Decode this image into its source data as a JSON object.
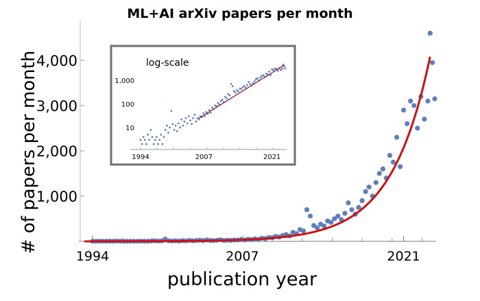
{
  "chart_data": {
    "type": "scatter",
    "title": "ML+AI arXiv papers per month",
    "xlabel": "publication year",
    "ylabel": "# of papers per month",
    "xlim": [
      1993,
      2024.5
    ],
    "ylim": [
      0,
      4800
    ],
    "x_ticks": [
      {
        "value": 1994,
        "label": "1994"
      },
      {
        "value": 2007,
        "label": "2007"
      },
      {
        "value": 2021,
        "label": "2021"
      }
    ],
    "y_ticks": [
      {
        "value": 1000,
        "label": "1,000"
      },
      {
        "value": 2000,
        "label": "2,000"
      },
      {
        "value": 3000,
        "label": "3,000"
      },
      {
        "value": 4000,
        "label": "4,000"
      }
    ],
    "colors": {
      "points": "#5b7fbf",
      "fit": "#d01010",
      "inset_fit": "#9b1b3a",
      "inset_border": "#6e6e6e"
    },
    "fit": {
      "type": "exponential",
      "reference_year": 2023.3,
      "value_at_reference": 4080,
      "doubling_years": 2.35
    },
    "points": [
      [
        1994.0,
        3
      ],
      [
        1994.3,
        2
      ],
      [
        1994.6,
        4
      ],
      [
        1994.9,
        3
      ],
      [
        1995.2,
        2
      ],
      [
        1995.5,
        5
      ],
      [
        1995.8,
        3
      ],
      [
        1996.1,
        8
      ],
      [
        1996.4,
        4
      ],
      [
        1996.7,
        2
      ],
      [
        1997.0,
        3
      ],
      [
        1997.3,
        4
      ],
      [
        1997.6,
        2
      ],
      [
        1997.9,
        3
      ],
      [
        1998.2,
        5
      ],
      [
        1998.5,
        2
      ],
      [
        1998.8,
        4
      ],
      [
        1999.1,
        8
      ],
      [
        1999.4,
        12
      ],
      [
        1999.7,
        6
      ],
      [
        2000.0,
        10
      ],
      [
        2000.3,
        50
      ],
      [
        2000.6,
        14
      ],
      [
        2000.9,
        8
      ],
      [
        2001.2,
        12
      ],
      [
        2001.5,
        7
      ],
      [
        2001.8,
        15
      ],
      [
        2002.1,
        10
      ],
      [
        2002.4,
        22
      ],
      [
        2002.7,
        12
      ],
      [
        2003.0,
        18
      ],
      [
        2003.3,
        25
      ],
      [
        2003.6,
        15
      ],
      [
        2003.9,
        30
      ],
      [
        2004.2,
        20
      ],
      [
        2004.5,
        14
      ],
      [
        2004.8,
        25
      ],
      [
        2005.1,
        35
      ],
      [
        2005.4,
        18
      ],
      [
        2005.7,
        25
      ],
      [
        2006.0,
        22
      ],
      [
        2006.3,
        30
      ],
      [
        2006.6,
        28
      ],
      [
        2006.9,
        40
      ],
      [
        2007.2,
        30
      ],
      [
        2007.5,
        45
      ],
      [
        2007.8,
        38
      ],
      [
        2008.1,
        55
      ],
      [
        2008.4,
        42
      ],
      [
        2008.7,
        70
      ],
      [
        2009.0,
        60
      ],
      [
        2009.3,
        85
      ],
      [
        2009.6,
        80
      ],
      [
        2009.9,
        110
      ],
      [
        2010.2,
        95
      ],
      [
        2010.5,
        130
      ],
      [
        2010.8,
        150
      ],
      [
        2011.1,
        120
      ],
      [
        2011.4,
        200
      ],
      [
        2011.7,
        170
      ],
      [
        2012.0,
        260
      ],
      [
        2012.3,
        230
      ],
      [
        2012.6,
        700
      ],
      [
        2012.9,
        560
      ],
      [
        2013.2,
        350
      ],
      [
        2013.5,
        300
      ],
      [
        2013.8,
        380
      ],
      [
        2014.1,
        340
      ],
      [
        2014.4,
        450
      ],
      [
        2014.7,
        420
      ],
      [
        2015.0,
        500
      ],
      [
        2015.3,
        560
      ],
      [
        2015.6,
        480
      ],
      [
        2015.9,
        620
      ],
      [
        2016.2,
        850
      ],
      [
        2016.5,
        700
      ],
      [
        2016.8,
        600
      ],
      [
        2017.1,
        750
      ],
      [
        2017.4,
        900
      ],
      [
        2017.7,
        1100
      ],
      [
        2018.0,
        1200
      ],
      [
        2018.3,
        1000
      ],
      [
        2018.6,
        1300
      ],
      [
        2018.9,
        1500
      ],
      [
        2019.2,
        1600
      ],
      [
        2019.5,
        1400
      ],
      [
        2019.8,
        1900
      ],
      [
        2020.1,
        1750
      ],
      [
        2020.4,
        2300
      ],
      [
        2020.7,
        1650
      ],
      [
        2021.0,
        2900
      ],
      [
        2021.3,
        2600
      ],
      [
        2021.6,
        3100
      ],
      [
        2021.9,
        3000
      ],
      [
        2022.2,
        2500
      ],
      [
        2022.5,
        3200
      ],
      [
        2022.8,
        2700
      ],
      [
        2023.1,
        3100
      ],
      [
        2023.3,
        4600
      ],
      [
        2023.5,
        3950
      ],
      [
        2023.7,
        3150
      ]
    ],
    "inset": {
      "type": "scatter",
      "yscale": "log",
      "label": "log-scale",
      "x_ticks": [
        {
          "value": 1994,
          "label": "1994"
        },
        {
          "value": 2007,
          "label": "2007"
        },
        {
          "value": 2021,
          "label": "2021"
        }
      ],
      "y_ticks": [
        {
          "value": 10,
          "label": "10"
        },
        {
          "value": 100,
          "label": "100"
        },
        {
          "value": 1000,
          "label": "1,000"
        }
      ],
      "fit_range": [
        2006,
        2023.5
      ]
    }
  }
}
